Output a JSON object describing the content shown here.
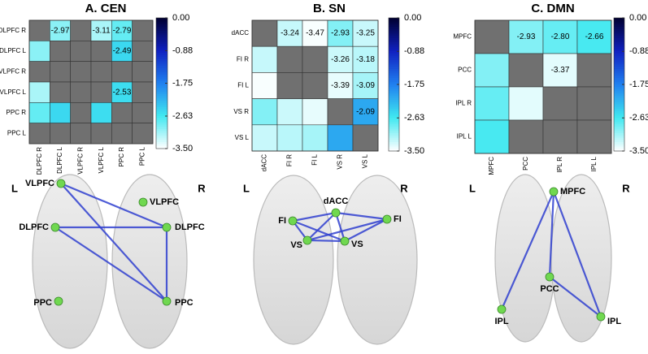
{
  "chart_data": [
    {
      "type": "heatmap",
      "title": "A. CEN",
      "categories": [
        "DLPFC R",
        "DLPFC L",
        "VLPFC R",
        "VLPFC L",
        "PPC R",
        "PPC L"
      ],
      "values": [
        [
          null,
          -2.97,
          null,
          -3.11,
          -2.79,
          null
        ],
        [
          -2.97,
          null,
          null,
          null,
          -2.49,
          null
        ],
        [
          null,
          null,
          null,
          null,
          null,
          null
        ],
        [
          -3.11,
          null,
          null,
          null,
          -2.53,
          null
        ],
        [
          -2.79,
          -2.49,
          null,
          -2.53,
          null,
          null
        ],
        [
          null,
          null,
          null,
          null,
          null,
          null
        ]
      ],
      "value_labels": [
        [
          null,
          "-2.97",
          null,
          "-3.11",
          "-2.79",
          null
        ],
        [
          null,
          null,
          null,
          null,
          "-2.49",
          null
        ],
        [
          null,
          null,
          null,
          null,
          null,
          null
        ],
        [
          null,
          null,
          null,
          null,
          "-2.53",
          null
        ],
        [
          null,
          null,
          null,
          null,
          null,
          null
        ],
        [
          null,
          null,
          null,
          null,
          null,
          null
        ]
      ],
      "zlim": [
        -3.5,
        0
      ],
      "zticks": [
        {
          "value": 0,
          "label": "0.00"
        },
        -0.88,
        -1.75,
        -2.63,
        {
          "value": -3.5,
          "label": "-3.50"
        }
      ],
      "colormap": [
        "#ffffff",
        "#40e8f0",
        "#2080f0",
        "#1020c0",
        "#000030"
      ],
      "null_color": "#707070",
      "network": {
        "side_labels": [
          "L",
          "R"
        ],
        "nodes": [
          "DLPFC",
          "DLPFC",
          "VLPFC",
          "VLPFC",
          "PPC",
          "PPC"
        ],
        "edge_color": "#3040d0",
        "node_color": "#70d850"
      }
    },
    {
      "type": "heatmap",
      "title": "B. SN",
      "categories": [
        "dACC",
        "FI R",
        "FI L",
        "VS R",
        "VS L"
      ],
      "values": [
        [
          null,
          -3.24,
          -3.47,
          -2.93,
          -3.25
        ],
        [
          -3.24,
          null,
          null,
          -3.26,
          -3.18
        ],
        [
          -3.47,
          null,
          null,
          -3.39,
          -3.09
        ],
        [
          -2.93,
          -3.26,
          -3.39,
          null,
          -2.09
        ],
        [
          -3.25,
          -3.18,
          -3.09,
          -2.09,
          null
        ]
      ],
      "value_labels": [
        [
          null,
          "-3.24",
          "-3.47",
          "-2.93",
          "-3.25"
        ],
        [
          null,
          null,
          null,
          "-3.26",
          "-3.18"
        ],
        [
          null,
          null,
          null,
          "-3.39",
          "-3.09"
        ],
        [
          null,
          null,
          null,
          null,
          "-2.09"
        ],
        [
          null,
          null,
          null,
          null,
          null
        ]
      ],
      "zlim": [
        -3.5,
        0
      ],
      "zticks": [
        {
          "value": 0,
          "label": "0.00"
        },
        -0.88,
        -1.75,
        -2.63,
        {
          "value": -3.5,
          "label": "-3.50"
        }
      ],
      "colormap": [
        "#ffffff",
        "#40e8f0",
        "#2080f0",
        "#1020c0",
        "#000030"
      ],
      "null_color": "#707070",
      "network": {
        "side_labels": [
          "L",
          "R"
        ],
        "nodes": [
          "dACC",
          "FI",
          "FI",
          "VS",
          "VS"
        ],
        "edge_color": "#3040d0",
        "node_color": "#70d850"
      }
    },
    {
      "type": "heatmap",
      "title": "C. DMN",
      "categories": [
        "MPFC",
        "PCC",
        "IPL R",
        "IPL L"
      ],
      "values": [
        [
          null,
          -2.93,
          -2.8,
          -2.66
        ],
        [
          -2.93,
          null,
          -3.37,
          null
        ],
        [
          -2.8,
          -3.37,
          null,
          null
        ],
        [
          -2.66,
          null,
          null,
          null
        ]
      ],
      "value_labels": [
        [
          null,
          "-2.93",
          "-2.80",
          "-2.66"
        ],
        [
          null,
          null,
          "-3.37",
          null
        ],
        [
          null,
          null,
          null,
          null
        ],
        [
          null,
          null,
          null,
          null
        ]
      ],
      "zlim": [
        -3.5,
        0
      ],
      "zticks": [
        {
          "value": 0,
          "label": "0.00"
        },
        -0.88,
        -1.75,
        -2.63,
        {
          "value": -3.5,
          "label": "-3.50"
        }
      ],
      "colormap": [
        "#ffffff",
        "#40e8f0",
        "#2080f0",
        "#1020c0",
        "#000030"
      ],
      "null_color": "#707070",
      "network": {
        "side_labels": [
          "L",
          "R"
        ],
        "nodes": [
          "MPFC",
          "PCC",
          "IPL",
          "IPL"
        ],
        "edge_color": "#3040d0",
        "node_color": "#70d850"
      }
    }
  ]
}
